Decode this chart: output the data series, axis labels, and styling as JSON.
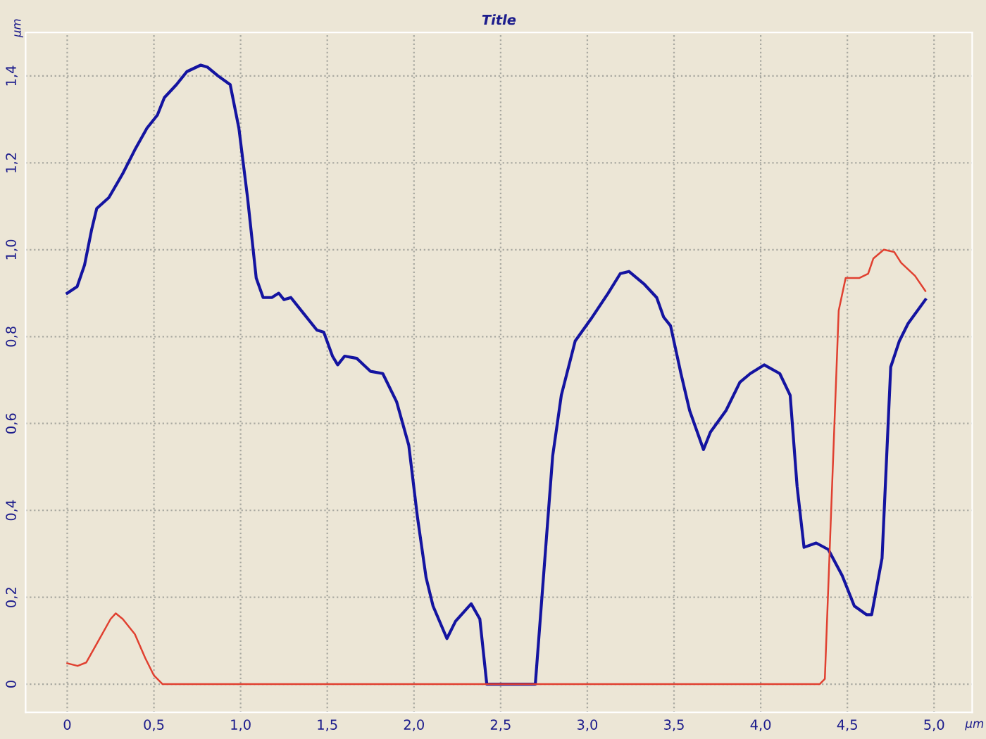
{
  "chart_data": {
    "type": "line",
    "title": "Title",
    "xlabel": "µm",
    "ylabel": "µm",
    "xlim": [
      -0.24,
      5.22
    ],
    "ylim": [
      -0.065,
      1.5
    ],
    "xticks": [
      0,
      {
        "value": 0.5,
        "label": "0,5"
      },
      {
        "value": 1.0,
        "label": "1,0"
      },
      {
        "value": 1.5,
        "label": "1,5"
      },
      {
        "value": 2.0,
        "label": "2,0"
      },
      {
        "value": 2.5,
        "label": "2,5"
      },
      {
        "value": 3.0,
        "label": "3,0"
      },
      {
        "value": 3.5,
        "label": "3,5"
      },
      {
        "value": 4.0,
        "label": "4,0"
      },
      {
        "value": 4.5,
        "label": "4,5"
      },
      {
        "value": 5.0,
        "label": "5,0"
      }
    ],
    "yticks": [
      0,
      {
        "value": 0.2,
        "label": "0,2"
      },
      {
        "value": 0.4,
        "label": "0,4"
      },
      {
        "value": 0.6,
        "label": "0,6"
      },
      {
        "value": 0.8,
        "label": "0,8"
      },
      {
        "value": 1.0,
        "label": "1,0"
      },
      {
        "value": 1.2,
        "label": "1,2"
      },
      {
        "value": 1.4,
        "label": "1,4"
      }
    ],
    "grid": true,
    "legend": false,
    "marker": "none",
    "line_style": "solid",
    "series": [
      {
        "color": "#1414a0",
        "x": [
          0,
          0.057,
          0.1,
          0.14,
          0.17,
          0.24,
          0.32,
          0.39,
          0.46,
          0.52,
          0.56,
          0.63,
          0.69,
          0.77,
          0.81,
          0.87,
          0.94,
          0.99,
          1.04,
          1.09,
          1.13,
          1.18,
          1.22,
          1.25,
          1.29,
          1.36,
          1.44,
          1.48,
          1.53,
          1.56,
          1.6,
          1.67,
          1.71,
          1.75,
          1.82,
          1.9,
          1.97,
          2.02,
          2.07,
          2.11,
          2.19,
          2.24,
          2.33,
          2.38,
          2.42,
          2.7,
          2.8,
          2.85,
          2.93,
          3.02,
          3.12,
          3.19,
          3.24,
          3.33,
          3.4,
          3.44,
          3.48,
          3.54,
          3.59,
          3.67,
          3.71,
          3.8,
          3.88,
          3.94,
          4.02,
          4.11,
          4.17,
          4.21,
          4.25,
          4.32,
          4.39,
          4.47,
          4.54,
          4.61,
          4.64,
          4.7,
          4.75,
          4.8,
          4.85,
          4.95
        ],
        "values": [
          0.9,
          0.915,
          0.965,
          1.045,
          1.095,
          1.12,
          1.175,
          1.23,
          1.28,
          1.31,
          1.35,
          1.38,
          1.41,
          1.425,
          1.42,
          1.4,
          1.38,
          1.28,
          1.12,
          0.935,
          0.89,
          0.89,
          0.9,
          0.885,
          0.89,
          0.855,
          0.815,
          0.81,
          0.755,
          0.735,
          0.755,
          0.75,
          0.735,
          0.72,
          0.715,
          0.65,
          0.55,
          0.385,
          0.245,
          0.18,
          0.105,
          0.145,
          0.185,
          0.15,
          0,
          0,
          0.525,
          0.665,
          0.79,
          0.84,
          0.9,
          0.945,
          0.95,
          0.92,
          0.89,
          0.845,
          0.825,
          0.715,
          0.63,
          0.54,
          0.58,
          0.63,
          0.695,
          0.715,
          0.735,
          0.715,
          0.665,
          0.455,
          0.315,
          0.325,
          0.31,
          0.25,
          0.18,
          0.16,
          0.16,
          0.29,
          0.73,
          0.79,
          0.83,
          0.885
        ]
      },
      {
        "color": "#e04030",
        "x": [
          0,
          0.06,
          0.11,
          0.18,
          0.25,
          0.28,
          0.32,
          0.39,
          0.45,
          0.5,
          0.55,
          4.34,
          4.37,
          4.45,
          4.49,
          4.57,
          4.62,
          4.65,
          4.71,
          4.77,
          4.81,
          4.89,
          4.95
        ],
        "values": [
          0.048,
          0.042,
          0.05,
          0.1,
          0.15,
          0.163,
          0.15,
          0.115,
          0.06,
          0.02,
          0,
          0,
          0.012,
          0.86,
          0.935,
          0.935,
          0.945,
          0.98,
          1.0,
          0.995,
          0.97,
          0.94,
          0.905
        ]
      }
    ]
  }
}
